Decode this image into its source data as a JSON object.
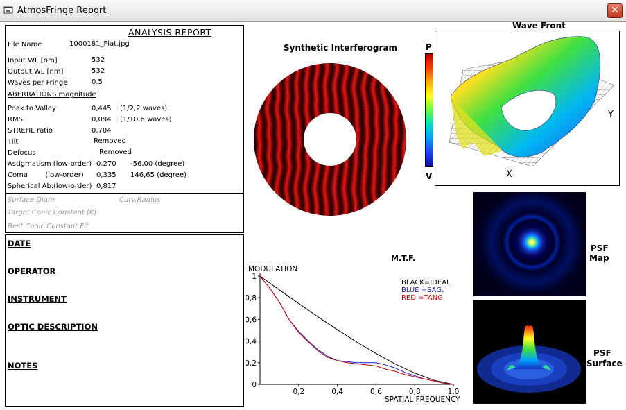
{
  "window": {
    "title": "AtmosFringe  Report",
    "close_label": "✕"
  },
  "report": {
    "heading": "ANALYSIS  REPORT",
    "file_name_label": "File Name",
    "file_name": "1000181_Flat.jpg",
    "input_wl_label": "Input  WL [nm]",
    "input_wl": "532",
    "output_wl_label": "Output WL [nm]",
    "output_wl": "532",
    "waves_label": "Waves per Fringe",
    "waves": "0.5",
    "aberr_heading": "ABERRATIONS magnitude",
    "rows": [
      {
        "label": "Peak to Valley",
        "v1": "0,445",
        "v2": "(1/2,2 waves)"
      },
      {
        "label": "RMS",
        "v1": "0,094",
        "v2": "(1/10,6 waves)"
      },
      {
        "label": "STREHL ratio",
        "v1": "0,704",
        "v2": ""
      },
      {
        "label": "Tilt",
        "v1": "",
        "v2": "Removed"
      },
      {
        "label": "Defocus",
        "v1": "",
        "v2": "Removed"
      },
      {
        "label": "Astigmatism  (low-order)",
        "v1": "0,270",
        "v2": "-56,00  (degree)"
      },
      {
        "label": "Coma        (low-order)",
        "v1": "0,335",
        "v2": "146,65  (degree)"
      },
      {
        "label": "Spherical Ab.(low-order)",
        "v1": "0,817",
        "v2": ""
      }
    ],
    "surface_diam": "Surface Diam",
    "curv_radius": "Curv.Radius",
    "target_conic": "Target Conic Constant [K]",
    "best_conic": "Best Conic Constant Fit"
  },
  "info": {
    "date": "DATE",
    "operator": "OPERATOR",
    "instrument": "INSTRUMENT",
    "optic": "OPTIC DESCRIPTION",
    "notes": "NOTES"
  },
  "interferogram": {
    "title": "Synthetic Interferogram",
    "scale_top": "P",
    "scale_bottom": "V"
  },
  "wavefront": {
    "title": "Wave Front",
    "x_label": "X",
    "y_label": "Y"
  },
  "psf": {
    "map_label_1": "PSF",
    "map_label_2": "Map",
    "surface_label_1": "PSF",
    "surface_label_2": "Surface"
  },
  "chart_data": {
    "type": "line",
    "title": "M.T.F.",
    "ylabel": "MODULATION",
    "xlabel": "SPATIAL FREQUENCY",
    "xlim": [
      0,
      1
    ],
    "ylim": [
      0,
      1
    ],
    "x_ticks": [
      "0,2",
      "0,4",
      "0,6",
      "0,8",
      "1,0"
    ],
    "y_ticks": [
      "0",
      "0,2",
      "0,4",
      "0,6",
      "0,8",
      "1"
    ],
    "legend": [
      "BLACK=IDEAL",
      "BLUE  =SAG.",
      "RED    =TANG"
    ],
    "series": [
      {
        "name": "IDEAL",
        "color": "#000000",
        "x": [
          0,
          0.1,
          0.2,
          0.3,
          0.4,
          0.5,
          0.6,
          0.7,
          0.8,
          0.9,
          1.0
        ],
        "y": [
          1.0,
          0.873,
          0.747,
          0.624,
          0.505,
          0.391,
          0.285,
          0.188,
          0.104,
          0.038,
          0.0
        ]
      },
      {
        "name": "SAG.",
        "color": "#1a1ad0",
        "x": [
          0,
          0.05,
          0.1,
          0.15,
          0.2,
          0.25,
          0.3,
          0.35,
          0.4,
          0.45,
          0.5,
          0.55,
          0.6,
          0.65,
          0.7,
          0.75,
          0.8,
          0.85,
          0.9,
          0.95,
          1.0
        ],
        "y": [
          1.0,
          0.89,
          0.76,
          0.6,
          0.49,
          0.4,
          0.32,
          0.26,
          0.22,
          0.21,
          0.2,
          0.2,
          0.2,
          0.18,
          0.15,
          0.11,
          0.08,
          0.05,
          0.03,
          0.01,
          0.0
        ]
      },
      {
        "name": "TANG",
        "color": "#cc0000",
        "x": [
          0,
          0.05,
          0.1,
          0.15,
          0.2,
          0.25,
          0.3,
          0.35,
          0.4,
          0.45,
          0.5,
          0.55,
          0.6,
          0.65,
          0.7,
          0.75,
          0.8,
          0.85,
          0.9,
          0.95,
          1.0
        ],
        "y": [
          1.0,
          0.89,
          0.76,
          0.6,
          0.48,
          0.39,
          0.31,
          0.25,
          0.22,
          0.2,
          0.19,
          0.18,
          0.17,
          0.14,
          0.12,
          0.09,
          0.07,
          0.05,
          0.03,
          0.01,
          0.0
        ]
      }
    ]
  },
  "colors": {
    "fringe_dark": "#1a0000",
    "fringe_red": "#e01818",
    "ideal": "#000000",
    "sag": "#1a1ad0",
    "tang": "#cc0000"
  }
}
